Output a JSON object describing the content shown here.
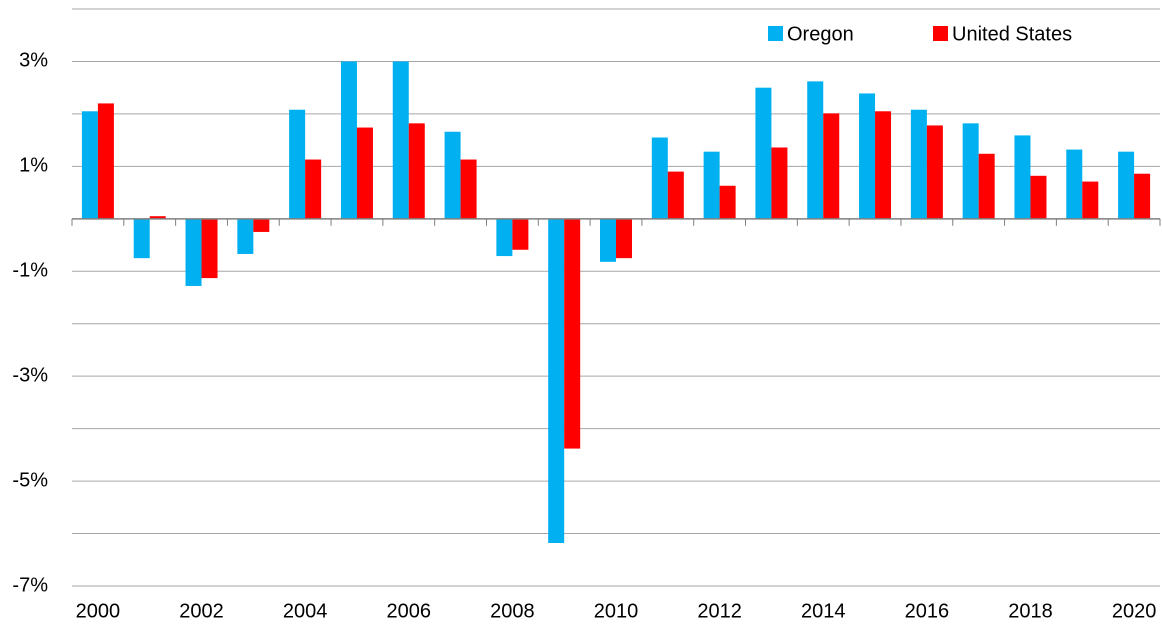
{
  "chart_data": {
    "type": "bar",
    "categories": [
      "2000",
      null,
      "2002",
      null,
      "2004",
      null,
      "2006",
      null,
      "2008",
      null,
      "2010",
      null,
      "2012",
      null,
      "2014",
      null,
      "2016",
      null,
      "2018",
      null,
      "2020"
    ],
    "series": [
      {
        "name": "Oregon",
        "color": "#00b0f0",
        "values": [
          2.05,
          -0.75,
          -1.28,
          -0.67,
          2.08,
          3.0,
          3.0,
          1.66,
          -0.71,
          -6.18,
          -0.82,
          1.55,
          1.28,
          2.5,
          2.62,
          2.39,
          2.08,
          1.82,
          1.59,
          1.32,
          1.28
        ]
      },
      {
        "name": "United States",
        "color": "#ff0000",
        "values": [
          2.2,
          0.05,
          -1.13,
          -0.25,
          1.13,
          1.74,
          1.82,
          1.13,
          -0.59,
          -4.38,
          -0.75,
          0.9,
          0.63,
          1.36,
          2.01,
          2.05,
          1.78,
          1.24,
          0.82,
          0.71,
          0.86
        ]
      }
    ],
    "ylim": [
      -7,
      4
    ],
    "yticks": [
      {
        "value": 3,
        "label": "3%"
      },
      {
        "value": 1,
        "label": "1%"
      },
      {
        "value": -1,
        "label": "-1%"
      },
      {
        "value": -3,
        "label": "-3%"
      },
      {
        "value": -5,
        "label": "-5%"
      },
      {
        "value": -7,
        "label": "-7%"
      }
    ],
    "ygrid": [
      4,
      2,
      -2,
      -4,
      -6
    ],
    "grid": true,
    "legend": "top-right",
    "divider_before": "2011"
  }
}
